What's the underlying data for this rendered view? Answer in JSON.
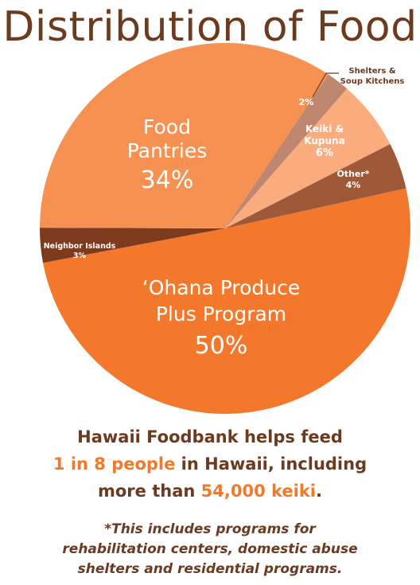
{
  "title": "Distribution of Food",
  "colors": {
    "ohana": "#f3782b",
    "pantries": "#f79152",
    "neighbor": "#7d3a1c",
    "shelters": "#c08770",
    "keiki": "#fbac7c",
    "other": "#9e5a38",
    "text_brown": "#6b3a1f",
    "accent": "#f07a2a"
  },
  "chart_data": {
    "type": "pie",
    "title": "Distribution of Food",
    "slices": [
      {
        "key": "ohana",
        "lines": [
          "‘Ohana Produce",
          "Plus Program"
        ],
        "pct_label": "50%",
        "value": 50
      },
      {
        "key": "neighbor",
        "lines": [
          "Neighbor Islands"
        ],
        "pct_label": "3%",
        "value": 3
      },
      {
        "key": "pantries",
        "lines": [
          "Food",
          "Pantries"
        ],
        "pct_label": "34%",
        "value": 34
      },
      {
        "key": "shelters",
        "lines": [
          "Shelters &",
          "Soup Kitchens"
        ],
        "pct_label": "2%",
        "value": 2
      },
      {
        "key": "keiki",
        "lines": [
          "Keiki &",
          "Kupuna"
        ],
        "pct_label": "6%",
        "value": 6
      },
      {
        "key": "other",
        "lines": [
          "Other*"
        ],
        "pct_label": "4%",
        "value": 4
      }
    ]
  },
  "summary": {
    "line1": "Hawaii Foodbank helps feed",
    "line2_hl": "1 in 8 people",
    "line2_rest": " in Hawaii, including",
    "line3_pre": "more than ",
    "line3_hl": "54,000 keiki",
    "line3_post": "."
  },
  "footnote": {
    "line1": "*This includes programs for",
    "line2": "rehabilitation centers, domestic abuse",
    "line3": "shelters and residential programs."
  }
}
